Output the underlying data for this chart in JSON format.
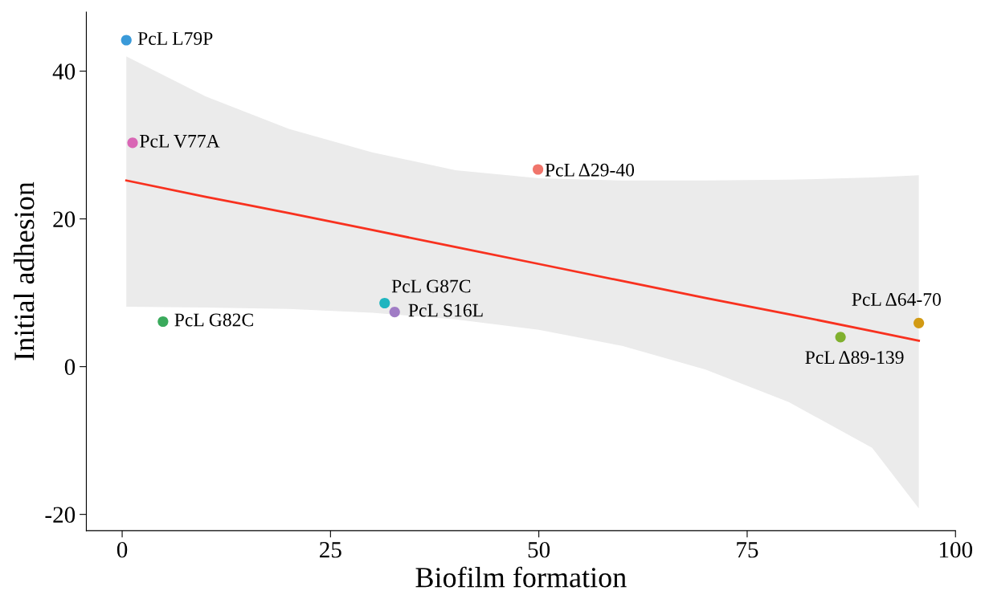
{
  "chart_data": {
    "type": "scatter",
    "xlabel": "Biofilm formation",
    "ylabel": "Initial adhesion",
    "xlim": [
      -4.3,
      100
    ],
    "ylim": [
      -22.2,
      48
    ],
    "xticks": [
      0,
      25,
      50,
      75,
      100
    ],
    "yticks": [
      {
        "value": -20,
        "label": "-20"
      },
      0,
      20,
      40
    ],
    "grid": false,
    "legend": false,
    "marker": "circle",
    "series": [
      {
        "type": "line",
        "marker": "none",
        "color": "#f8311f",
        "x": [
          0.5,
          10,
          20,
          30,
          40,
          50,
          60,
          70,
          80,
          90,
          95.6
        ],
        "values": [
          25.2,
          23.0,
          20.8,
          18.5,
          16.2,
          13.9,
          11.6,
          9.3,
          7.1,
          4.8,
          3.5
        ],
        "lower": [
          8.1,
          8.0,
          7.8,
          7.3,
          6.4,
          5.0,
          2.8,
          -0.4,
          -4.8,
          -11.0,
          -19.2
        ],
        "upper": [
          42.0,
          36.6,
          32.2,
          29.0,
          26.6,
          25.5,
          25.2,
          25.2,
          25.3,
          25.6,
          25.9
        ]
      },
      {
        "name": "PcL L79P",
        "color": "#3a9ad9",
        "x": [
          0.5
        ],
        "values": [
          44.2
        ]
      },
      {
        "name": "PcL V77A",
        "color": "#d966b5",
        "x": [
          1.25
        ],
        "values": [
          30.3
        ]
      },
      {
        "name": "PcL Δ29-40",
        "color": "#f0756b",
        "x": [
          49.9
        ],
        "values": [
          26.7
        ]
      },
      {
        "name": "PcL G87C",
        "color": "#1fb5bf",
        "x": [
          31.5
        ],
        "values": [
          8.6
        ]
      },
      {
        "name": "PcL S16L",
        "color": "#a07cc5",
        "x": [
          32.7
        ],
        "values": [
          7.4
        ]
      },
      {
        "name": "PcL G82C",
        "color": "#3aaa5c",
        "x": [
          4.9
        ],
        "values": [
          6.1
        ]
      },
      {
        "name": "PcL Δ89-139",
        "color": "#80b02e",
        "x": [
          86.2
        ],
        "values": [
          4.0
        ]
      },
      {
        "name": "PcL Δ64-70",
        "color": "#d29a13",
        "x": [
          95.6
        ],
        "values": [
          5.9
        ]
      }
    ]
  }
}
